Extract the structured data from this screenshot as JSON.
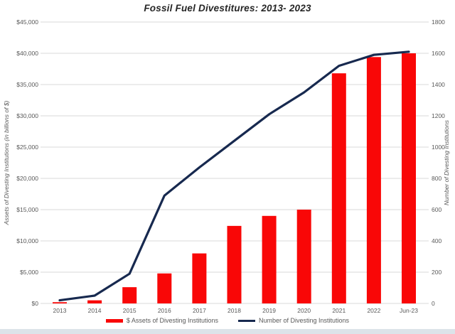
{
  "chart_data": {
    "type": "combo-bar-line",
    "title": "Fossil Fuel Divestitures: 2013- 2023",
    "categories": [
      "2013",
      "2014",
      "2015",
      "2016",
      "2017",
      "2018",
      "2019",
      "2020",
      "2021",
      "2022",
      "Jun-23"
    ],
    "series": [
      {
        "name": "$ Assets of Divesting Institutions",
        "type": "bar",
        "axis": "left",
        "color": "#f90707",
        "values": [
          200,
          500,
          2600,
          4800,
          8000,
          12400,
          14000,
          15000,
          36800,
          39400,
          40000
        ]
      },
      {
        "name": "Number of Divesting Institutions",
        "type": "line",
        "axis": "right",
        "color": "#17294f",
        "values": [
          20,
          50,
          190,
          690,
          870,
          1040,
          1210,
          1350,
          1520,
          1590,
          1610
        ]
      }
    ],
    "left_axis": {
      "label": "Assets of Divesting Institutions (in billions of $)",
      "min": 0,
      "max": 45000,
      "step": 5000,
      "tick_labels": [
        "$0",
        "$5,000",
        "$10,000",
        "$15,000",
        "$20,000",
        "$25,000",
        "$30,000",
        "$35,000",
        "$40,000",
        "$45,000"
      ]
    },
    "right_axis": {
      "label": "Number of Divesting Institutions",
      "min": 0,
      "max": 1800,
      "step": 200,
      "tick_labels": [
        "0",
        "200",
        "400",
        "600",
        "800",
        "1000",
        "1200",
        "1400",
        "1600",
        "1800"
      ]
    },
    "grid": true,
    "legend_position": "bottom",
    "colors": {
      "gridline": "#d9d9d9",
      "tick_text": "#595959",
      "axis_title_text": "#595959",
      "title_text": "#262626",
      "background": "#ffffff",
      "bottom_strip": "#dce3e9"
    }
  }
}
